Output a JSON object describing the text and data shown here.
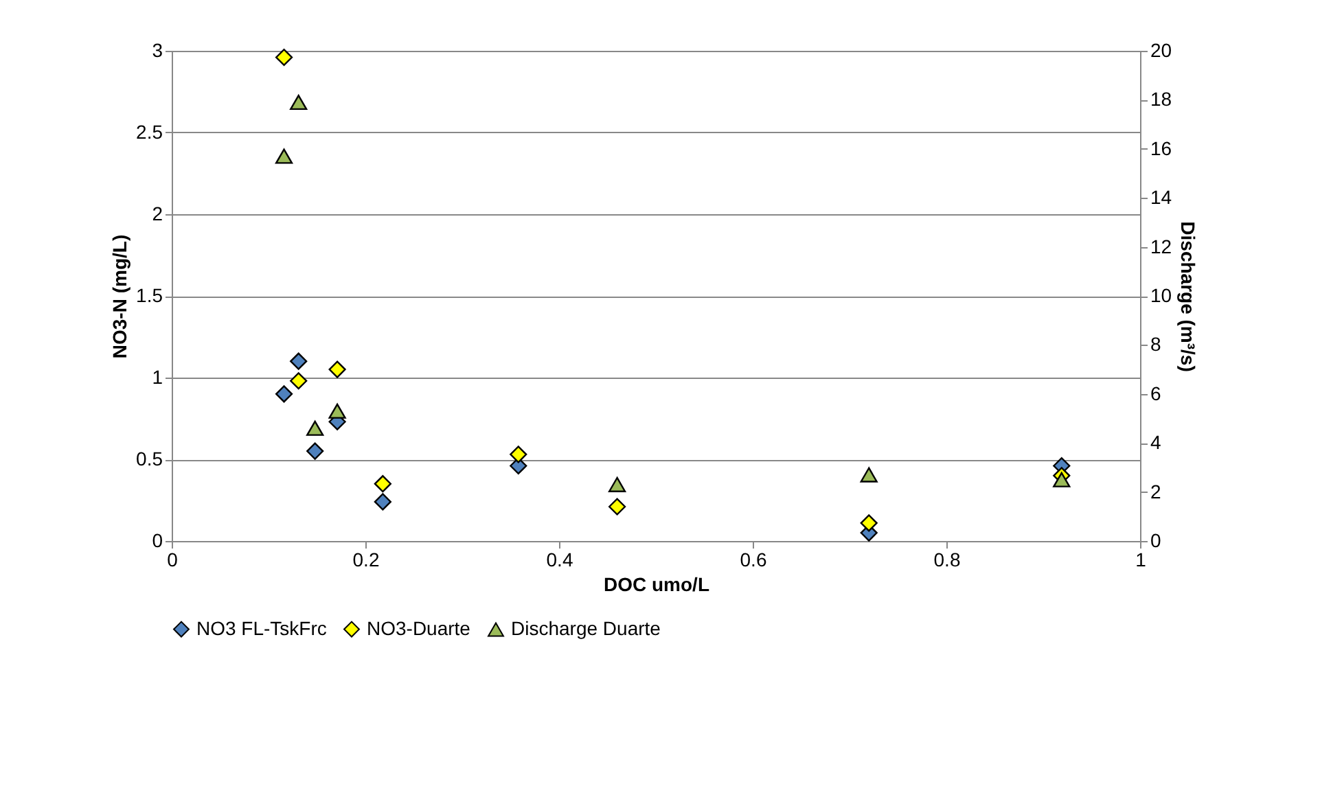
{
  "chart_data": {
    "type": "scatter",
    "xlabel": "DOC umo/L",
    "ylabel": "NO3-N (mg/L)",
    "y2label": "Discharge (m³/s)",
    "xlim": [
      0,
      1
    ],
    "xticks": [
      0,
      0.2,
      0.4,
      0.6,
      0.8,
      1
    ],
    "ylim": [
      0,
      3
    ],
    "yticks": [
      0,
      0.5,
      1,
      1.5,
      2,
      2.5,
      3
    ],
    "y2lim": [
      0,
      20
    ],
    "y2ticks": [
      0,
      2,
      4,
      6,
      8,
      10,
      12,
      14,
      16,
      18,
      20
    ],
    "grid": "y",
    "legend": "bottom",
    "series": [
      {
        "name": "NO3 FL-TskFrc",
        "color": "#4f81bd",
        "marker": "diamond",
        "x": [
          0.116,
          0.131,
          0.148,
          0.171,
          0.218,
          0.358,
          0.72,
          0.919
        ],
        "values": [
          0.9,
          1.1,
          0.55,
          0.73,
          0.24,
          0.46,
          0.05,
          0.46
        ]
      },
      {
        "name": "NO3-Duarte",
        "color": "#ffff00",
        "marker": "diamond",
        "x": [
          0.116,
          0.131,
          0.148,
          0.171,
          0.218,
          0.358,
          0.46,
          0.72,
          0.919
        ],
        "values": [
          2.96,
          0.98,
          null,
          1.05,
          0.35,
          0.53,
          0.21,
          0.11,
          0.4
        ]
      },
      {
        "name": "Discharge Duarte",
        "color": "#9bbb59",
        "marker": "triangle",
        "axis": "y2",
        "x": [
          0.116,
          0.131,
          0.148,
          0.171,
          0.46,
          0.72,
          0.919
        ],
        "values": [
          15.7,
          17.9,
          4.6,
          5.3,
          2.3,
          2.7,
          2.5
        ]
      }
    ]
  }
}
